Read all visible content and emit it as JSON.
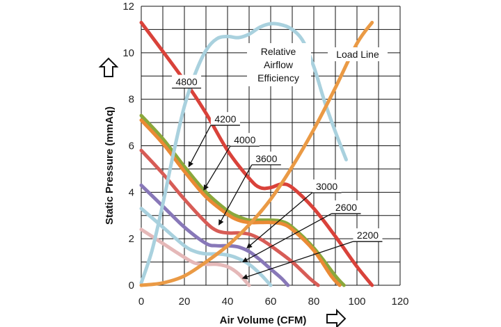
{
  "chart_data": {
    "type": "line",
    "xlabel": "Air Volume (CFM)",
    "ylabel": "Static Pressure (mmAq)",
    "xlim": [
      0,
      120
    ],
    "ylim": [
      0,
      12
    ],
    "xticks": [
      "0",
      "20",
      "40",
      "60",
      "80",
      "100",
      "120"
    ],
    "yticks": [
      "0",
      "2",
      "4",
      "6",
      "8",
      "10",
      "12"
    ],
    "grid": true,
    "annotations": {
      "efficiency": [
        "Relative",
        "Airflow",
        "Efficiency"
      ],
      "load_line": "Load Line"
    },
    "series": [
      {
        "name": "4800",
        "color": "#d9423a",
        "x": [
          0,
          20,
          30,
          40,
          50,
          55,
          60,
          65,
          70,
          80,
          90,
          100,
          107
        ],
        "y": [
          11.3,
          8.8,
          7.4,
          5.8,
          4.6,
          4.2,
          4.2,
          4.35,
          4.2,
          3.3,
          2.1,
          0.8,
          0
        ]
      },
      {
        "name": "4200",
        "color": "#8aa83c",
        "x": [
          0,
          10,
          20,
          30,
          40,
          45,
          50,
          55,
          60,
          65,
          70,
          80,
          90,
          94
        ],
        "y": [
          7.3,
          6.3,
          5.1,
          4.0,
          3.2,
          2.95,
          2.8,
          2.8,
          2.8,
          2.75,
          2.5,
          1.6,
          0.4,
          0
        ]
      },
      {
        "name": "4000",
        "color": "#ea8a35",
        "x": [
          0,
          10,
          20,
          30,
          40,
          45,
          50,
          55,
          60,
          65,
          70,
          80,
          88,
          92
        ],
        "y": [
          7.1,
          6.1,
          4.9,
          3.8,
          3.05,
          2.8,
          2.7,
          2.7,
          2.7,
          2.65,
          2.4,
          1.5,
          0.4,
          0
        ]
      },
      {
        "name": "3600",
        "color": "#d75c56",
        "x": [
          0,
          10,
          20,
          30,
          35,
          40,
          45,
          50,
          55,
          60,
          70,
          78,
          82
        ],
        "y": [
          5.8,
          4.8,
          3.7,
          2.7,
          2.35,
          2.25,
          2.25,
          2.2,
          2.0,
          1.7,
          1.0,
          0.3,
          0
        ]
      },
      {
        "name": "3000",
        "color": "#8878b8",
        "x": [
          0,
          10,
          20,
          30,
          35,
          40,
          45,
          50,
          55,
          60,
          65,
          68
        ],
        "y": [
          4.3,
          3.4,
          2.5,
          1.8,
          1.7,
          1.7,
          1.65,
          1.45,
          1.1,
          0.7,
          0.3,
          0
        ]
      },
      {
        "name": "2600",
        "color": "#a9d1de",
        "x": [
          0,
          10,
          20,
          25,
          30,
          35,
          40,
          45,
          50,
          55,
          60
        ],
        "y": [
          3.3,
          2.5,
          1.7,
          1.45,
          1.35,
          1.35,
          1.3,
          1.15,
          0.9,
          0.5,
          0
        ]
      },
      {
        "name": "2200",
        "color": "#e5b8b8",
        "x": [
          0,
          10,
          20,
          25,
          30,
          35,
          40,
          45,
          50
        ],
        "y": [
          2.4,
          1.8,
          1.2,
          0.95,
          0.9,
          0.9,
          0.8,
          0.5,
          0
        ]
      },
      {
        "name": "Relative Airflow Efficiency",
        "color": "#a9d1de",
        "x": [
          0,
          5,
          10,
          15,
          20,
          25,
          30,
          35,
          40,
          45,
          50,
          55,
          60,
          65,
          70,
          75,
          80,
          85,
          90,
          95
        ],
        "y": [
          0.1,
          1.5,
          3.5,
          5.7,
          7.7,
          9.1,
          10.1,
          10.6,
          10.7,
          10.65,
          10.8,
          11.1,
          11.25,
          11.2,
          11.0,
          10.5,
          9.4,
          7.9,
          6.6,
          5.4
        ]
      },
      {
        "name": "Load Line",
        "color": "#ea9a45",
        "x": [
          0,
          10,
          20,
          30,
          40,
          50,
          60,
          70,
          80,
          90,
          100,
          107
        ],
        "y": [
          0,
          0.1,
          0.4,
          1.0,
          1.7,
          2.6,
          3.7,
          5.1,
          6.7,
          8.5,
          10.4,
          11.3
        ]
      }
    ],
    "rpm_labels": [
      {
        "text": "4800",
        "at": [
          21,
          8.6
        ],
        "arrow_to": [
          21,
          8.3
        ]
      },
      {
        "text": "4200",
        "at": [
          39,
          7.0
        ],
        "arrow_to": [
          22,
          5.1
        ]
      },
      {
        "text": "4000",
        "at": [
          48,
          6.1
        ],
        "arrow_to": [
          29,
          4.1
        ]
      },
      {
        "text": "3600",
        "at": [
          58,
          5.3
        ],
        "arrow_to": [
          36,
          2.6
        ]
      },
      {
        "text": "3000",
        "at": [
          86,
          4.1
        ],
        "arrow_to": [
          49,
          1.6
        ]
      },
      {
        "text": "2600",
        "at": [
          95,
          3.2
        ],
        "arrow_to": [
          47,
          1.0
        ]
      },
      {
        "text": "2200",
        "at": [
          105,
          2.0
        ],
        "arrow_to": [
          47,
          0.3
        ]
      }
    ]
  }
}
